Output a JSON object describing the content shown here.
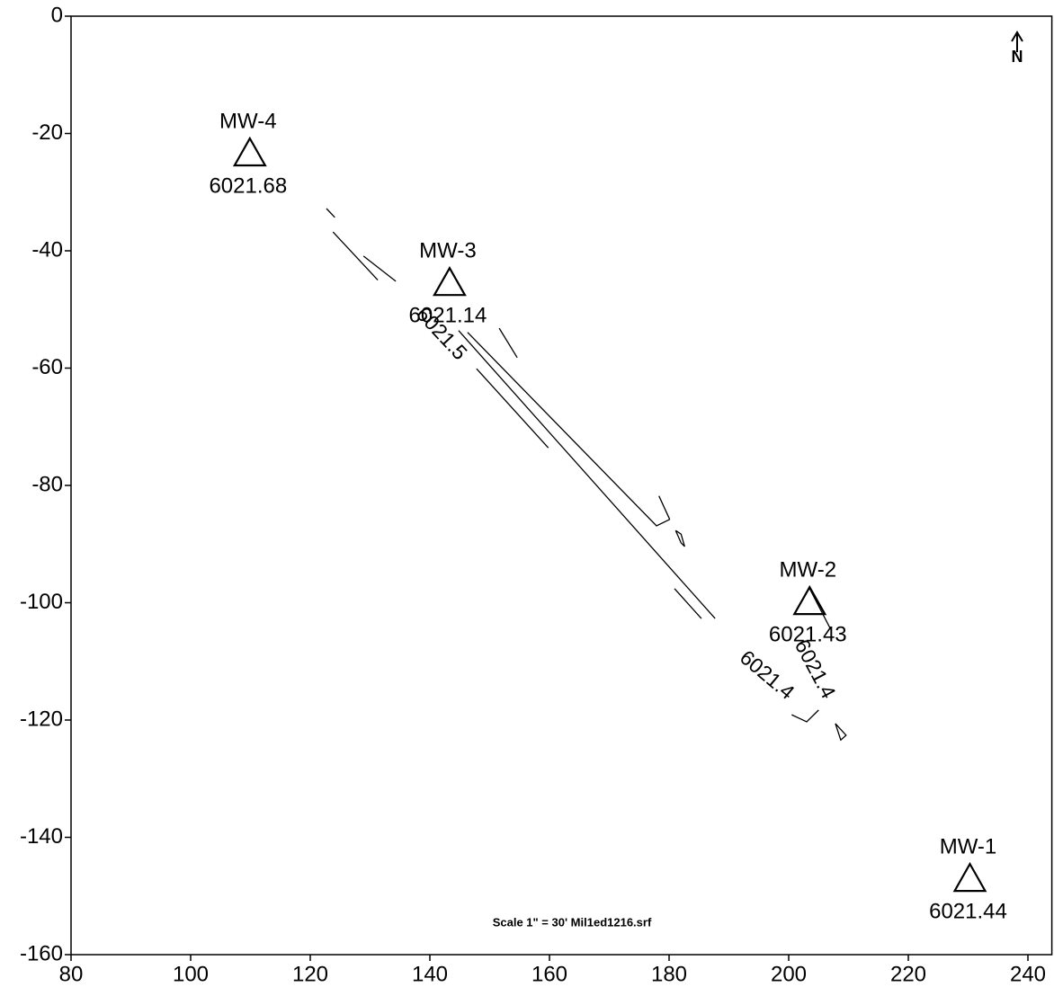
{
  "chart_data": {
    "type": "scatter",
    "x": [
      230.3,
      203.5,
      143.3,
      109.9
    ],
    "y": [
      -147.3,
      -100.1,
      -45.7,
      -23.6
    ],
    "labels": [
      "MW-1",
      "MW-2",
      "MW-3",
      "MW-4"
    ],
    "levels": [
      6021.44,
      6021.43,
      6021.14,
      6021.68
    ],
    "color": "#000000",
    "xlim": [
      80,
      244
    ],
    "ylim": [
      -160,
      0
    ],
    "xticks": [
      80,
      100,
      120,
      140,
      160,
      180,
      200,
      220,
      240
    ],
    "yticks": [
      0,
      -20,
      -40,
      -60,
      -80,
      -100,
      -120,
      -140,
      -160
    ],
    "contours": [
      {
        "level": 6021.5,
        "x": [
          146.3,
          177.9,
          180.1
        ],
        "y": [
          -53.9,
          -86.9,
          -85.8
        ]
      },
      {
        "level": 6021.4,
        "x": [
          203.5,
          207.0
        ],
        "y": [
          -97.6,
          -104.5
        ]
      },
      {
        "level": 6021.4,
        "x": [
          200.5,
          203.0,
          205.0
        ],
        "y": [
          -119.1,
          -120.3,
          -118.3
        ]
      }
    ],
    "fragments": [
      {
        "x": [
          122.7,
          124.1
        ],
        "y": [
          -32.8,
          -34.3
        ]
      },
      {
        "x": [
          123.8,
          131.3
        ],
        "y": [
          -36.8,
          -45.0
        ]
      },
      {
        "x": [
          128.9,
          134.3
        ],
        "y": [
          -40.9,
          -45.2
        ]
      },
      {
        "x": [
          147.8,
          159.8
        ],
        "y": [
          -60.1,
          -73.6
        ]
      },
      {
        "x": [
          144.8,
          187.7
        ],
        "y": [
          -53.6,
          -102.7
        ]
      },
      {
        "x": [
          180.9,
          185.4
        ],
        "y": [
          -97.6,
          -102.7
        ]
      },
      {
        "x": [
          178.3,
          180.1
        ],
        "y": [
          -81.8,
          -85.8
        ]
      },
      {
        "x": [
          151.6,
          154.6
        ],
        "y": [
          -53.2,
          -58.2
        ]
      },
      {
        "x": [
          181.1,
          182.0,
          182.6,
          182.0,
          181.1
        ],
        "y": [
          -87.7,
          -89.8,
          -90.4,
          -88.3,
          -87.7
        ]
      },
      {
        "x": [
          207.8,
          208.7,
          209.6,
          207.8
        ],
        "y": [
          -120.6,
          -123.4,
          -122.6,
          -120.6
        ]
      }
    ],
    "note": "Scale 1\" = 30'  Mil1ed1216.srf",
    "north": "N"
  }
}
